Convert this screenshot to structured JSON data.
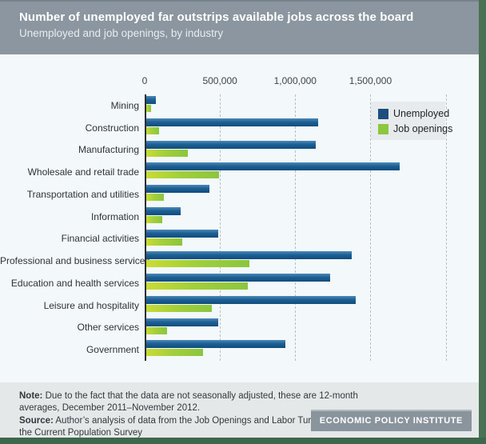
{
  "header": {
    "title": "Number of unemployed far outstrips available jobs across the board",
    "subtitle": "Unemployed and job openings, by industry"
  },
  "chart_data": {
    "type": "bar",
    "orientation": "horizontal",
    "title": "Unemployed and job openings, by industry",
    "xlabel": "",
    "ylabel": "",
    "axis_max": 2220000,
    "x_ticks": [
      {
        "value": 0,
        "label": "0"
      },
      {
        "value": 500000,
        "label": "500,000"
      },
      {
        "value": 1000000,
        "label": "1,000,000"
      },
      {
        "value": 1500000,
        "label": "1,500,000"
      }
    ],
    "gridline_values": [
      500000,
      1000000,
      1500000,
      2000000
    ],
    "grid": "dashed-vertical",
    "legend_position": "top-right",
    "categories": [
      "Mining",
      "Construction",
      "Manufacturing",
      "Wholesale and retail trade",
      "Transportation and utilities",
      "Information",
      "Financial activities",
      "Professional and business services",
      "Education and health services",
      "Leisure and hospitality",
      "Other services",
      "Government"
    ],
    "series": [
      {
        "name": "Unemployed",
        "color": "#1c4f7c",
        "values": [
          65000,
          1150000,
          1130000,
          1690000,
          420000,
          230000,
          480000,
          1370000,
          1230000,
          1400000,
          480000,
          930000
        ]
      },
      {
        "name": "Job openings",
        "color": "#8dc63f",
        "values": [
          30000,
          85000,
          280000,
          485000,
          120000,
          105000,
          240000,
          690000,
          680000,
          440000,
          140000,
          380000
        ]
      }
    ]
  },
  "footer": {
    "note_label": "Note:",
    "note_text": " Due to the fact that the data are not seasonally adjusted, these are 12-month averages, December 2011–November 2012.",
    "source_label": "Source:",
    "source_text": " Author’s analysis of data from the Job Openings and Labor Turnover Survey and the Current Population Survey",
    "brand": "ECONOMIC POLICY INSTITUTE"
  },
  "colors": {
    "header_bg": "#8b96a0",
    "frame_green": "#4a7154",
    "chart_bg": "#f3f8fa",
    "footer_bg": "#e5e8e9",
    "unemployed_bar": "#1c4f7c",
    "job_openings_bar": "#8dc63f",
    "brand_badge_bg": "#8a949c"
  }
}
